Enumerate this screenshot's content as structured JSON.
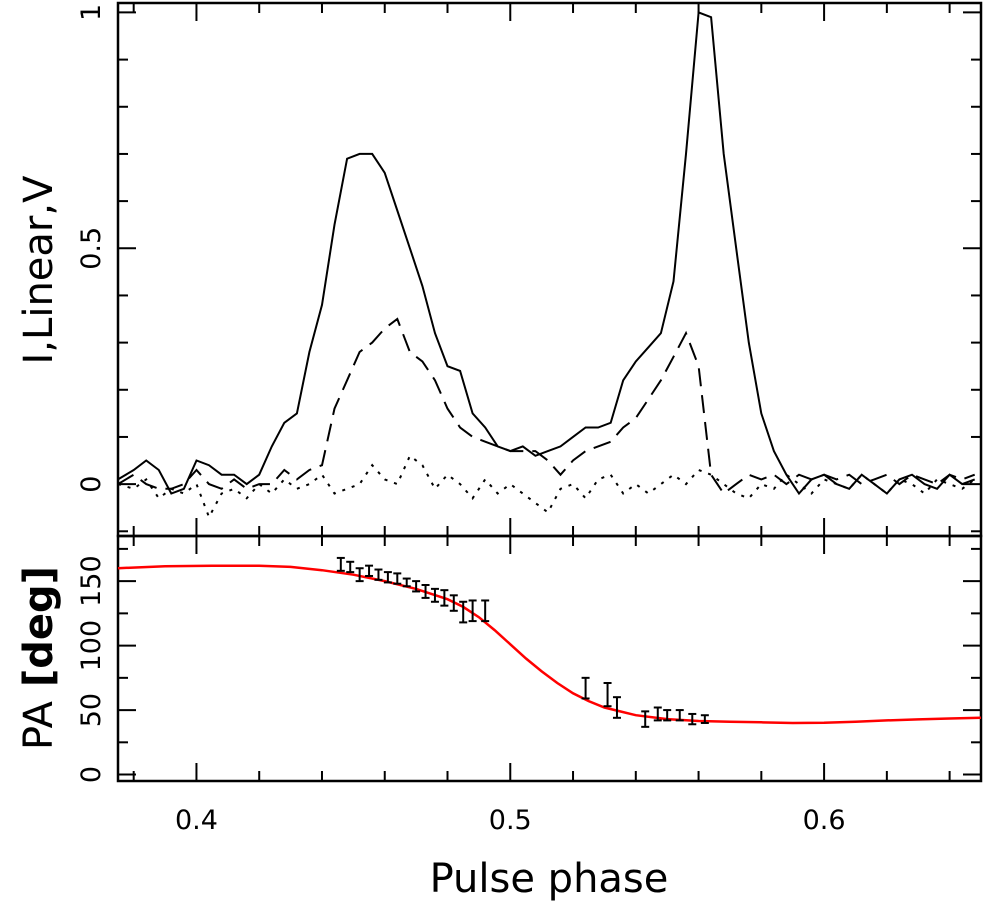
{
  "chart_data": [
    {
      "type": "line",
      "panel": "profile",
      "ylabel": "I,Linear,V",
      "xlim": [
        0.375,
        0.65
      ],
      "ylim": [
        -0.11,
        1.02
      ],
      "yticks": [
        0,
        0.5,
        1
      ],
      "ytick_labels": [
        "0",
        "0.5",
        "1"
      ],
      "series": [
        {
          "style": "solid",
          "x": [
            0.375,
            0.38,
            0.384,
            0.388,
            0.392,
            0.396,
            0.4,
            0.404,
            0.408,
            0.412,
            0.416,
            0.42,
            0.424,
            0.428,
            0.432,
            0.436,
            0.44,
            0.444,
            0.448,
            0.452,
            0.456,
            0.46,
            0.464,
            0.468,
            0.472,
            0.476,
            0.48,
            0.484,
            0.488,
            0.492,
            0.496,
            0.5,
            0.504,
            0.508,
            0.512,
            0.516,
            0.52,
            0.524,
            0.528,
            0.532,
            0.536,
            0.54,
            0.544,
            0.548,
            0.552,
            0.556,
            0.56,
            0.564,
            0.568,
            0.572,
            0.576,
            0.58,
            0.584,
            0.588,
            0.592,
            0.596,
            0.6,
            0.604,
            0.608,
            0.612,
            0.616,
            0.62,
            0.624,
            0.628,
            0.632,
            0.636,
            0.64,
            0.644,
            0.648
          ],
          "y": [
            0.01,
            0.03,
            0.05,
            0.03,
            -0.02,
            -0.01,
            0.05,
            0.04,
            0.02,
            0.02,
            0.0,
            0.02,
            0.08,
            0.13,
            0.15,
            0.28,
            0.38,
            0.55,
            0.69,
            0.7,
            0.7,
            0.66,
            0.58,
            0.5,
            0.42,
            0.32,
            0.25,
            0.24,
            0.15,
            0.12,
            0.08,
            0.07,
            0.08,
            0.06,
            0.07,
            0.08,
            0.1,
            0.12,
            0.12,
            0.13,
            0.22,
            0.26,
            0.29,
            0.32,
            0.43,
            0.7,
            1.0,
            0.99,
            0.7,
            0.5,
            0.3,
            0.15,
            0.07,
            0.02,
            -0.02,
            0.01,
            0.02,
            0.0,
            -0.01,
            0.02,
            0.0,
            -0.02,
            0.01,
            0.02,
            0.0,
            -0.01,
            0.02,
            0.0,
            0.01
          ]
        },
        {
          "style": "dashed",
          "x": [
            0.375,
            0.38,
            0.384,
            0.388,
            0.392,
            0.396,
            0.4,
            0.404,
            0.408,
            0.412,
            0.416,
            0.42,
            0.424,
            0.428,
            0.432,
            0.436,
            0.44,
            0.444,
            0.448,
            0.452,
            0.456,
            0.46,
            0.464,
            0.468,
            0.472,
            0.476,
            0.48,
            0.484,
            0.488,
            0.492,
            0.496,
            0.5,
            0.504,
            0.508,
            0.512,
            0.516,
            0.52,
            0.524,
            0.528,
            0.532,
            0.536,
            0.54,
            0.544,
            0.548,
            0.552,
            0.556,
            0.56,
            0.564,
            0.568,
            0.572,
            0.576,
            0.58,
            0.584,
            0.588,
            0.592,
            0.596,
            0.6,
            0.604,
            0.608,
            0.612,
            0.616,
            0.62,
            0.624,
            0.628,
            0.632,
            0.636,
            0.64,
            0.644,
            0.648
          ],
          "y": [
            0.0,
            0.02,
            0.0,
            -0.01,
            -0.01,
            0.0,
            0.03,
            0.0,
            -0.01,
            0.01,
            -0.01,
            0.0,
            0.0,
            0.03,
            0.01,
            0.03,
            0.04,
            0.16,
            0.22,
            0.28,
            0.3,
            0.33,
            0.35,
            0.28,
            0.26,
            0.22,
            0.16,
            0.12,
            0.1,
            0.09,
            0.08,
            0.07,
            0.07,
            0.07,
            0.05,
            0.02,
            0.05,
            0.07,
            0.08,
            0.09,
            0.12,
            0.14,
            0.18,
            0.22,
            0.27,
            0.32,
            0.25,
            0.02,
            -0.02,
            0.0,
            0.02,
            0.01,
            0.02,
            0.0,
            0.02,
            0.01,
            0.02,
            0.01,
            0.02,
            0.0,
            0.01,
            0.02,
            0.0,
            0.02,
            0.01,
            0.0,
            0.02,
            0.01,
            0.02
          ]
        },
        {
          "style": "dotted",
          "x": [
            0.375,
            0.38,
            0.384,
            0.388,
            0.392,
            0.396,
            0.4,
            0.404,
            0.408,
            0.412,
            0.416,
            0.42,
            0.424,
            0.428,
            0.432,
            0.436,
            0.44,
            0.444,
            0.448,
            0.452,
            0.456,
            0.46,
            0.464,
            0.468,
            0.472,
            0.476,
            0.48,
            0.484,
            0.488,
            0.492,
            0.496,
            0.5,
            0.504,
            0.508,
            0.512,
            0.516,
            0.52,
            0.524,
            0.528,
            0.532,
            0.536,
            0.54,
            0.544,
            0.548,
            0.552,
            0.556,
            0.56,
            0.564,
            0.568,
            0.572,
            0.576,
            0.58,
            0.584,
            0.588,
            0.592,
            0.596,
            0.6,
            0.604,
            0.608,
            0.612,
            0.616,
            0.62,
            0.624,
            0.628,
            0.632,
            0.636,
            0.64,
            0.644,
            0.648
          ],
          "y": [
            0.0,
            -0.01,
            0.01,
            -0.03,
            -0.01,
            -0.02,
            0.0,
            -0.07,
            -0.02,
            -0.01,
            -0.03,
            0.0,
            -0.02,
            0.01,
            -0.01,
            0.0,
            0.02,
            -0.02,
            -0.01,
            0.0,
            0.04,
            0.01,
            0.0,
            0.06,
            0.04,
            -0.01,
            0.02,
            0.0,
            -0.03,
            0.01,
            -0.02,
            0.0,
            -0.02,
            -0.04,
            -0.06,
            -0.01,
            0.0,
            -0.03,
            0.01,
            0.02,
            -0.02,
            0.0,
            -0.02,
            0.0,
            0.02,
            0.0,
            0.03,
            0.02,
            0.0,
            -0.02,
            -0.03,
            0.0,
            -0.01,
            0.02,
            0.0,
            -0.02,
            0.01,
            0.0,
            -0.01,
            0.02,
            0.0,
            -0.02,
            0.01,
            0.0,
            -0.02,
            0.01,
            0.0,
            -0.01,
            0.01
          ]
        }
      ]
    },
    {
      "type": "scatter",
      "panel": "position-angle",
      "ylabel_main": "PA",
      "ylabel_unit": "[deg]",
      "xlabel": "Pulse phase",
      "xlim": [
        0.375,
        0.65
      ],
      "ylim": [
        -5,
        185
      ],
      "xticks": [
        0.4,
        0.5,
        0.6
      ],
      "xtick_labels": [
        "0.4",
        "0.5",
        "0.6"
      ],
      "yticks": [
        0,
        50,
        100,
        150
      ],
      "ytick_labels": [
        "0",
        "50",
        "100",
        "150"
      ],
      "points": {
        "x": [
          0.446,
          0.449,
          0.452,
          0.455,
          0.458,
          0.461,
          0.464,
          0.467,
          0.47,
          0.473,
          0.476,
          0.479,
          0.482,
          0.485,
          0.488,
          0.492,
          0.524,
          0.531,
          0.534,
          0.543,
          0.547,
          0.55,
          0.554,
          0.558,
          0.562
        ],
        "y": [
          163,
          161,
          155,
          158,
          155,
          153,
          152,
          149,
          146,
          142,
          139,
          137,
          133,
          126,
          127,
          127,
          67,
          62,
          52,
          43,
          47,
          46,
          46,
          43,
          43
        ],
        "err": [
          5,
          4,
          5,
          4,
          4,
          4,
          4,
          3,
          4,
          5,
          5,
          6,
          6,
          8,
          8,
          8,
          8,
          9,
          8,
          6,
          5,
          4,
          4,
          4,
          3
        ]
      },
      "fit_curve": {
        "color": "#ff0000",
        "x": [
          0.375,
          0.39,
          0.405,
          0.42,
          0.43,
          0.44,
          0.45,
          0.46,
          0.47,
          0.48,
          0.485,
          0.49,
          0.495,
          0.5,
          0.505,
          0.51,
          0.515,
          0.52,
          0.525,
          0.53,
          0.535,
          0.54,
          0.55,
          0.56,
          0.57,
          0.58,
          0.59,
          0.6,
          0.61,
          0.62,
          0.63,
          0.64,
          0.65
        ],
        "y": [
          160,
          161.5,
          162,
          162,
          161,
          158.5,
          155,
          150,
          144,
          136,
          130,
          122,
          112,
          101,
          90,
          80,
          71,
          63,
          57,
          52,
          49,
          46,
          43,
          41.5,
          41,
          40.5,
          40,
          40.2,
          41,
          42,
          42.8,
          43.5,
          44
        ]
      }
    }
  ]
}
